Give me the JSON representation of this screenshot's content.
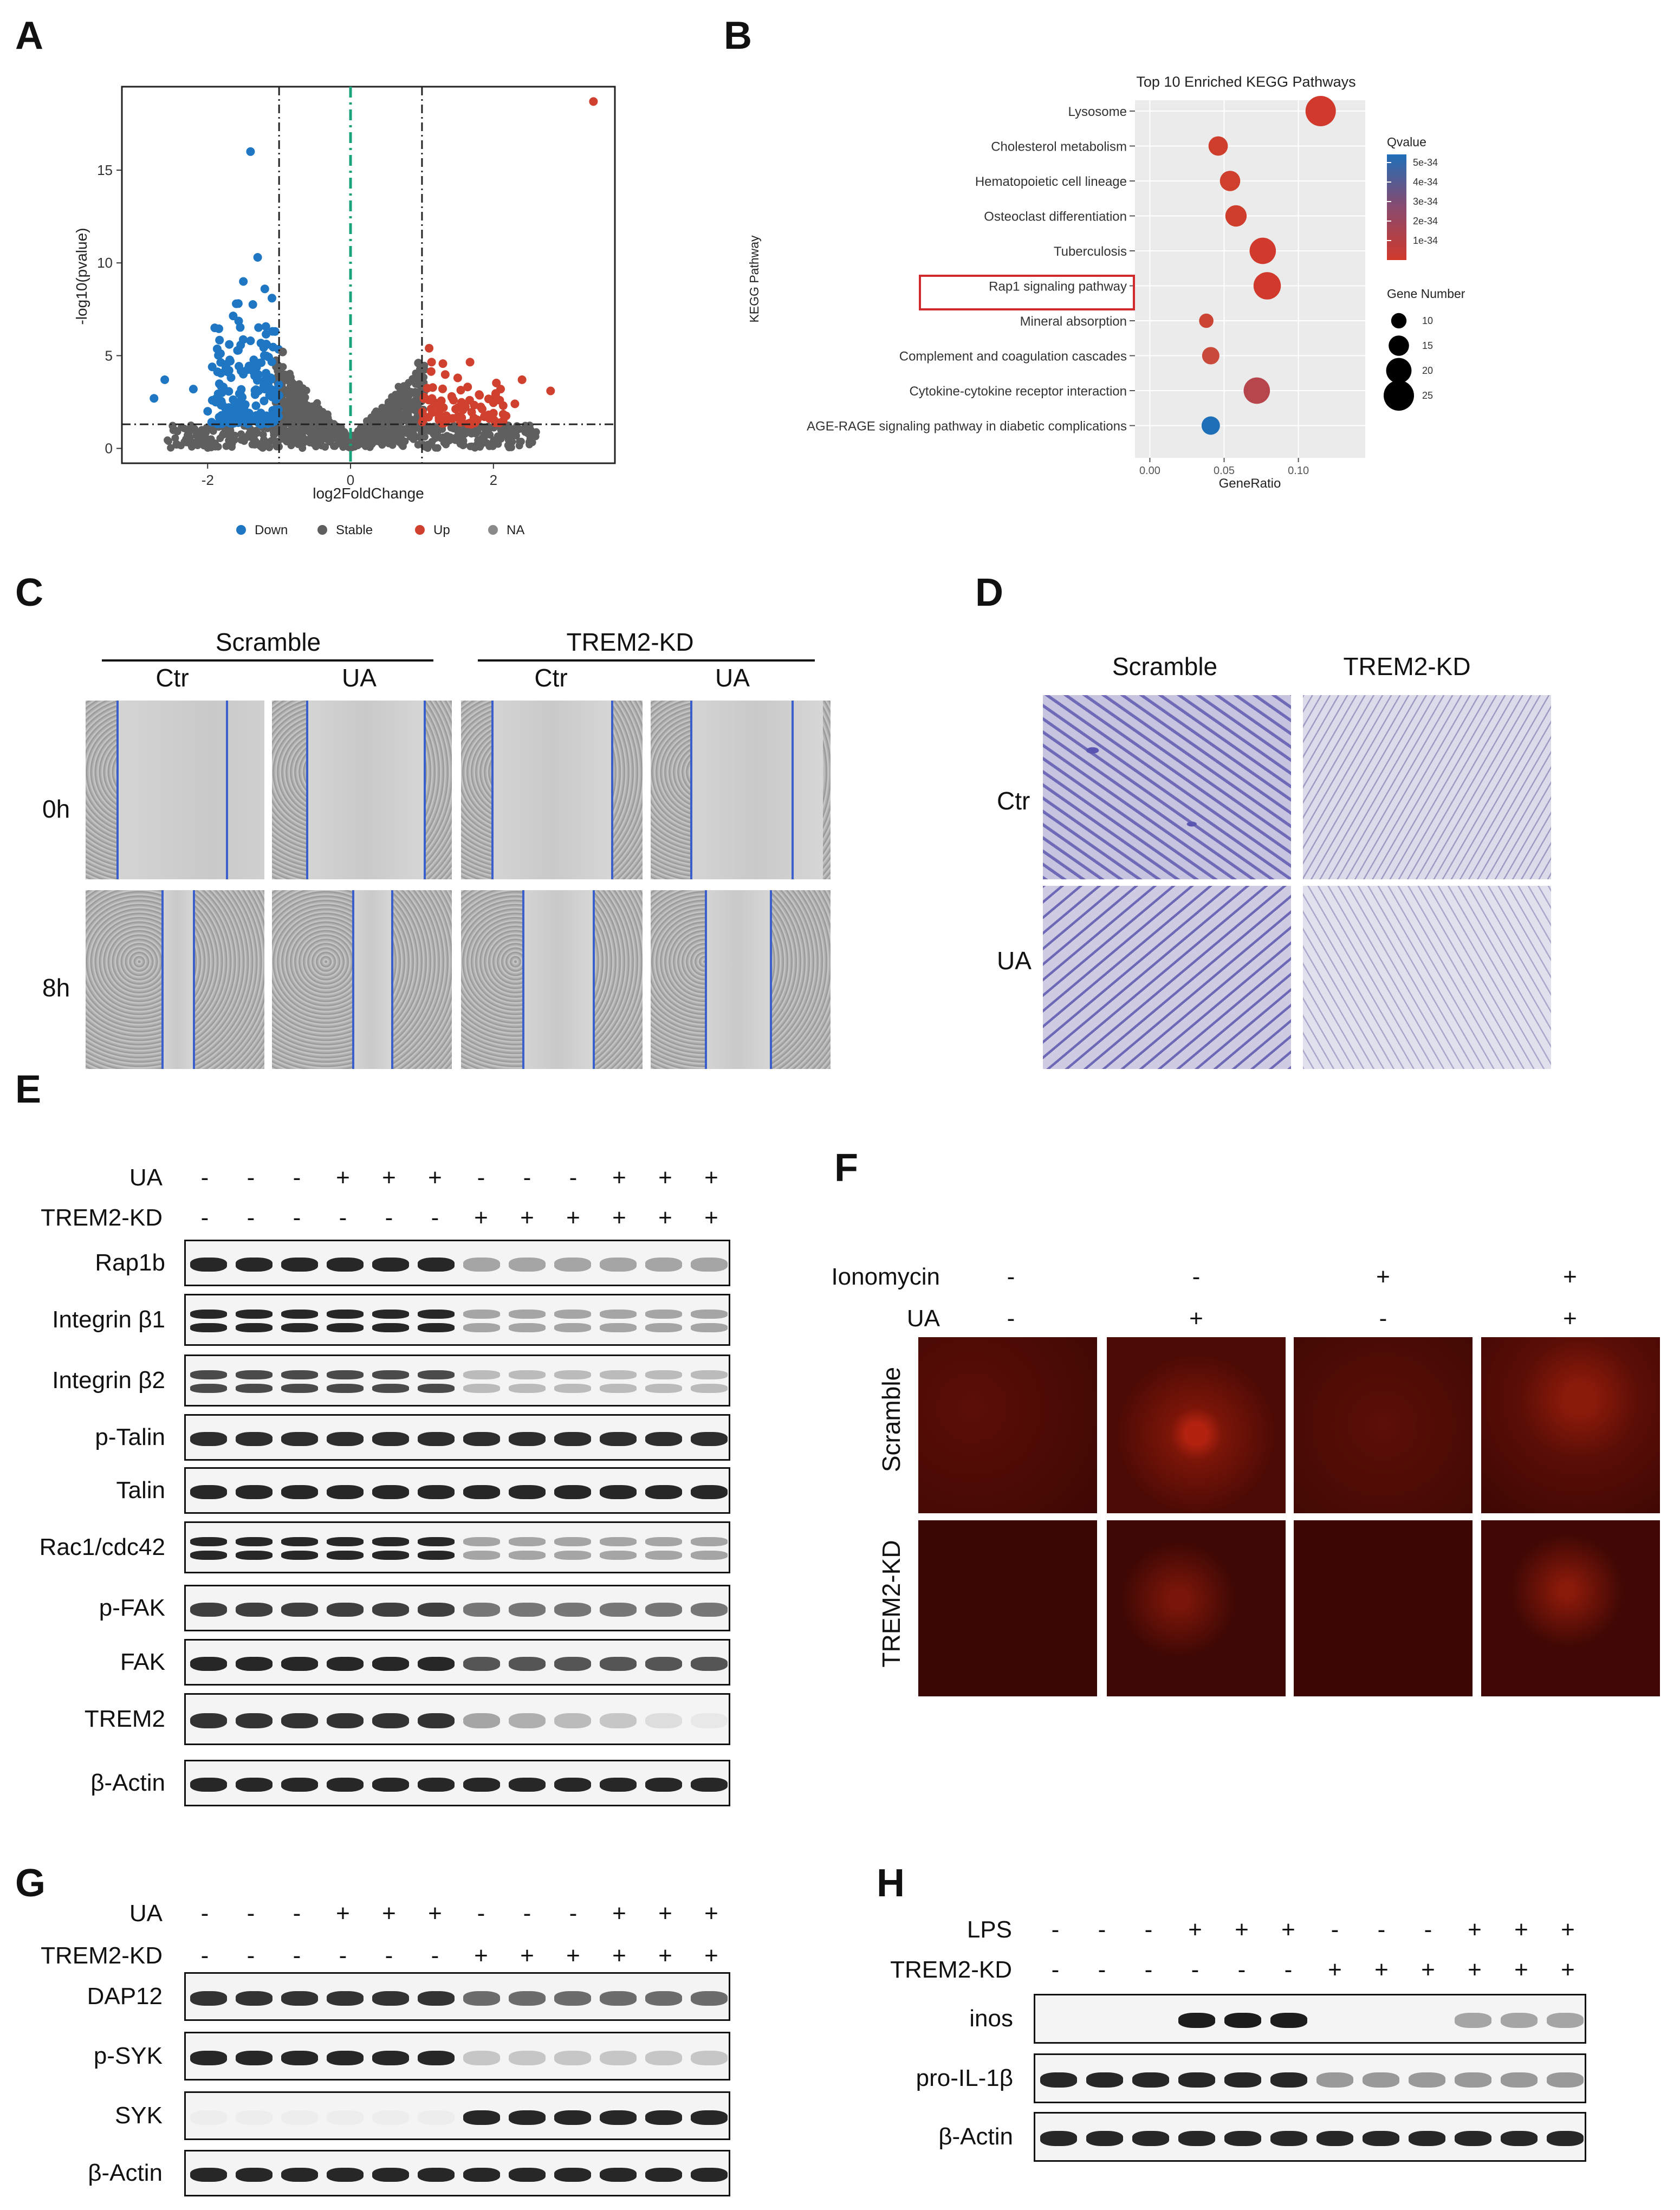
{
  "panels": [
    "A",
    "B",
    "C",
    "D",
    "E",
    "F",
    "G",
    "H"
  ],
  "volcano": {
    "xlabel": "log2FoldChange",
    "ylabel": "-log10(pvalue)",
    "xticks": [
      "-2",
      "0",
      "2"
    ],
    "yticks": [
      "0",
      "5",
      "10",
      "15"
    ],
    "legend": [
      {
        "label": "Down",
        "color": "#1f77c4"
      },
      {
        "label": "Stable",
        "color": "#5f5f5f"
      },
      {
        "label": "Up",
        "color": "#d0402e"
      },
      {
        "label": "NA",
        "color": "#8a8a8a"
      }
    ]
  },
  "chart_data": [
    {
      "type": "scatter",
      "xlabel": "log2FoldChange",
      "ylabel": "-log10(pvalue)",
      "xlim": [
        -3.2,
        3.7
      ],
      "ylim": [
        -0.8,
        19.5
      ],
      "thresholds": {
        "log2fc": [
          -1,
          1
        ],
        "neg_log10_p": 1.3
      },
      "series": [
        {
          "name": "Down",
          "points": [
            [
              -1.4,
              16
            ],
            [
              -1.3,
              10.3
            ],
            [
              -1.5,
              9
            ],
            [
              -1.2,
              8.6
            ],
            [
              -1.6,
              7.8
            ],
            [
              -1.1,
              8.1
            ],
            [
              -1.9,
              6.5
            ],
            [
              -2.6,
              3.7
            ],
            [
              -2.75,
              2.7
            ],
            [
              -2.2,
              3.2
            ],
            [
              -1.4,
              5.8
            ],
            [
              -1.3,
              4.6
            ],
            [
              -1.7,
              4.2
            ],
            [
              -1.2,
              3.2
            ],
            [
              -1.8,
              2.4
            ],
            [
              -2.0,
              2.0
            ]
          ]
        },
        {
          "name": "Up",
          "points": [
            [
              3.4,
              18.7
            ],
            [
              2.4,
              3.7
            ],
            [
              2.8,
              3.1
            ],
            [
              1.1,
              5.4
            ],
            [
              1.5,
              3.8
            ],
            [
              1.8,
              2.9
            ],
            [
              2.1,
              3.2
            ],
            [
              1.3,
              2.2
            ],
            [
              2.0,
              1.9
            ],
            [
              2.3,
              2.4
            ]
          ]
        },
        {
          "name": "Stable",
          "points": [
            [
              0,
              0.3
            ],
            [
              0.2,
              0.6
            ],
            [
              -0.2,
              0.6
            ],
            [
              0.5,
              1.6
            ],
            [
              -0.5,
              1.6
            ],
            [
              0.8,
              3.1
            ],
            [
              -0.8,
              3.1
            ],
            [
              -0.95,
              5.2
            ],
            [
              0.95,
              4.6
            ],
            [
              0.3,
              1.0
            ],
            [
              -0.3,
              1.0
            ]
          ]
        }
      ]
    },
    {
      "type": "scatter",
      "title": "Top 10 Enriched KEGG Pathways",
      "xlabel": "GeneRatio",
      "ylabel": "KEGG Pathway",
      "xticks": [
        "0.00",
        "0.05",
        "0.10"
      ],
      "xlim": [
        -0.01,
        0.145
      ],
      "categories": [
        "Lysosome",
        "Cholesterol metabolism",
        "Hematopoietic cell lineage",
        "Osteoclast differentiation",
        "Tuberculosis",
        "Rap1 signaling pathway",
        "Mineral absorption",
        "Complement and coagulation cascades",
        "Cytokine-cytokine receptor interaction",
        "AGE-RAGE signaling pathway in diabetic complications"
      ],
      "generatio": [
        0.115,
        0.046,
        0.054,
        0.058,
        0.076,
        0.079,
        0.038,
        0.041,
        0.072,
        0.041
      ],
      "gene_number": [
        25,
        14,
        15,
        16,
        21,
        22,
        9,
        12,
        21,
        13
      ],
      "qvalue_color": [
        "#d0392b",
        "#cf3d2d",
        "#cf3f2e",
        "#cf3d2d",
        "#d0392b",
        "#d0392b",
        "#cc4434",
        "#c94a3a",
        "#b7464c",
        "#1f6fb8"
      ],
      "highlight": "Rap1 signaling pathway",
      "legend_qvalue": {
        "title": "Qvalue",
        "ticks": [
          "5e-34",
          "4e-34",
          "3e-34",
          "2e-34",
          "1e-34"
        ]
      },
      "legend_size": {
        "title": "Gene Number",
        "ticks": [
          "10",
          "15",
          "20",
          "25"
        ]
      }
    }
  ],
  "panelC": {
    "groups": [
      "Scramble",
      "TREM2-KD"
    ],
    "cols": [
      "Ctr",
      "UA",
      "Ctr",
      "UA"
    ],
    "rows": [
      "0h",
      "8h"
    ]
  },
  "panelD": {
    "cols": [
      "Scramble",
      "TREM2-KD"
    ],
    "rows": [
      "Ctr",
      "UA"
    ]
  },
  "panelE": {
    "ua_label": "UA",
    "kd_label": "TREM2-KD",
    "ua_signs": [
      "-",
      "-",
      "-",
      "+",
      "+",
      "+",
      "-",
      "-",
      "-",
      "+",
      "+",
      "+"
    ],
    "kd_signs": [
      "-",
      "-",
      "-",
      "-",
      "-",
      "-",
      "+",
      "+",
      "+",
      "+",
      "+",
      "+"
    ],
    "blots": [
      "Rap1b",
      "Integrin β1",
      "Integrin β2",
      "p-Talin",
      "Talin",
      "Rac1/cdc42",
      "p-FAK",
      "FAK",
      "TREM2",
      "β-Actin"
    ]
  },
  "panelF": {
    "iono_label": "Ionomycin",
    "ua_label": "UA",
    "iono_signs": [
      "-",
      "-",
      "+",
      "+"
    ],
    "ua_signs": [
      "-",
      "+",
      "-",
      "+"
    ],
    "rows": [
      "Scramble",
      "TREM2-KD"
    ]
  },
  "panelG": {
    "ua_label": "UA",
    "kd_label": "TREM2-KD",
    "ua_signs": [
      "-",
      "-",
      "-",
      "+",
      "+",
      "+",
      "-",
      "-",
      "-",
      "+",
      "+",
      "+"
    ],
    "kd_signs": [
      "-",
      "-",
      "-",
      "-",
      "-",
      "-",
      "+",
      "+",
      "+",
      "+",
      "+",
      "+"
    ],
    "blots": [
      "DAP12",
      "p-SYK",
      "SYK",
      "β-Actin"
    ]
  },
  "panelH": {
    "lps_label": "LPS",
    "kd_label": "TREM2-KD",
    "lps_signs": [
      "-",
      "-",
      "-",
      "+",
      "+",
      "+",
      "-",
      "-",
      "-",
      "+",
      "+",
      "+"
    ],
    "kd_signs": [
      "-",
      "-",
      "-",
      "-",
      "-",
      "-",
      "+",
      "+",
      "+",
      "+",
      "+",
      "+"
    ],
    "blots": [
      "inos",
      "pro-IL-1β",
      "β-Actin"
    ]
  }
}
